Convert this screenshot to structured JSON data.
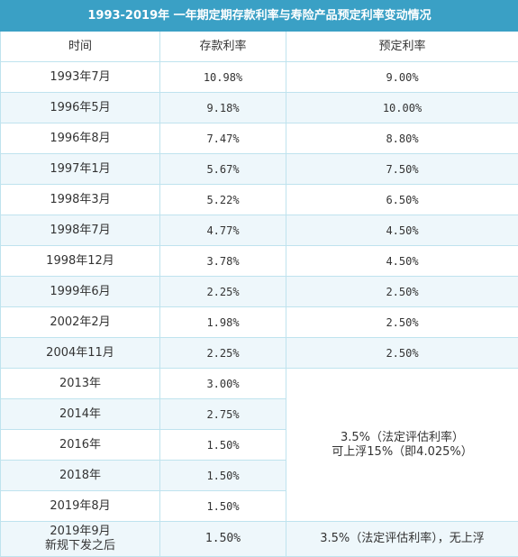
{
  "title": "1993-2019年 一年期定期存款利率与寿险产品预定利率变动情况",
  "headers": [
    "时间",
    "存款利率",
    "预定利率"
  ],
  "rows": [
    {
      "time": "1993年7月",
      "deposit": "10.98%",
      "preset": "9.00%"
    },
    {
      "time": "1996年5月",
      "deposit": "9.18%",
      "preset": "10.00%"
    },
    {
      "time": "1996年8月",
      "deposit": "7.47%",
      "preset": "8.80%"
    },
    {
      "time": "1997年1月",
      "deposit": "5.67%",
      "preset": "7.50%"
    },
    {
      "time": "1998年3月",
      "deposit": "5.22%",
      "preset": "6.50%"
    },
    {
      "time": "1998年7月",
      "deposit": "4.77%",
      "preset": "4.50%"
    },
    {
      "time": "1998年12月",
      "deposit": "3.78%",
      "preset": "4.50%"
    },
    {
      "time": "1999年6月",
      "deposit": "2.25%",
      "preset": "2.50%"
    },
    {
      "time": "2002年2月",
      "deposit": "1.98%",
      "preset": "2.50%"
    },
    {
      "time": "2004年11月",
      "deposit": "2.25%",
      "preset": "2.50%"
    },
    {
      "time": "2013年",
      "deposit": "3.00%"
    },
    {
      "time": "2014年",
      "deposit": "2.75%"
    },
    {
      "time": "2016年",
      "deposit": "1.50%"
    },
    {
      "time": "2018年",
      "deposit": "1.50%"
    },
    {
      "time": "2019年8月",
      "deposit": "1.50%"
    }
  ],
  "merged_preset": {
    "line1": "3.5%（法定评估利率）",
    "line2": "可上浮15%（即4.025%）"
  },
  "last_row": {
    "time_line1": "2019年9月",
    "time_line2": "新规下发之后",
    "deposit": "1.50%",
    "preset": "3.5%（法定评估利率），无上浮"
  }
}
